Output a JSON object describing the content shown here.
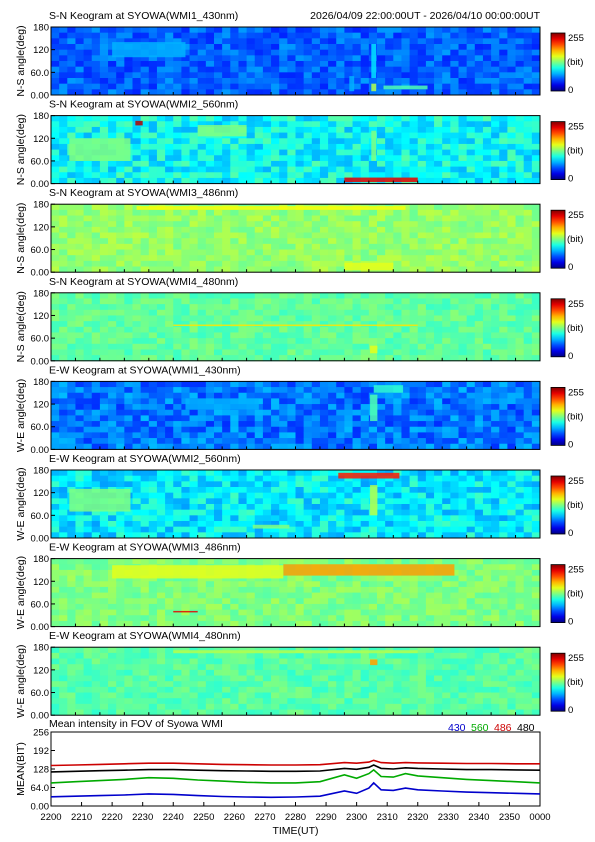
{
  "header": {
    "time_range": "2026/04/09 22:00:00UT - 2026/04/10 00:00:00UT"
  },
  "colorbar": {
    "max_label": "255",
    "unit_label": "(bit)",
    "min_label": "0"
  },
  "chart_data": [
    {
      "type": "heatmap",
      "title": "S-N Keogram at SYOWA(WMI1_430nm)",
      "ylabel": "N-S angle(deg)",
      "yticks": [
        "180",
        "120",
        "60.0",
        "0.00"
      ],
      "ylim": [
        0,
        180
      ],
      "xlim": [
        2200,
        2400
      ],
      "background": 0.22,
      "texture": 0.06,
      "features": [
        {
          "x": 2323,
          "y": 30,
          "w": 2,
          "h": 40,
          "v": 0.3
        },
        {
          "x": 2332,
          "y": 90,
          "w": 2,
          "h": 90,
          "v": 0.35
        },
        {
          "x": 2332,
          "y": 20,
          "w": 2,
          "h": 20,
          "v": 0.55
        },
        {
          "x": 2345,
          "y": 20,
          "w": 18,
          "h": 10,
          "v": 0.45
        },
        {
          "x": 2240,
          "y": 120,
          "w": 30,
          "h": 40,
          "v": 0.3
        }
      ]
    },
    {
      "type": "heatmap",
      "title": "S-N Keogram at SYOWA(WMI2_560nm)",
      "ylabel": "N-S angle(deg)",
      "yticks": [
        "180",
        "120",
        "60.0",
        "0.00"
      ],
      "ylim": [
        0,
        180
      ],
      "xlim": [
        2200,
        2400
      ],
      "background": 0.38,
      "texture": 0.08,
      "features": [
        {
          "x": 2236,
          "y": 160,
          "w": 3,
          "h": 12,
          "v": 0.95
        },
        {
          "x": 2335,
          "y": 10,
          "w": 30,
          "h": 12,
          "v": 0.9
        },
        {
          "x": 2332,
          "y": 100,
          "w": 2,
          "h": 80,
          "v": 0.5
        },
        {
          "x": 2220,
          "y": 90,
          "w": 25,
          "h": 60,
          "v": 0.5
        },
        {
          "x": 2270,
          "y": 140,
          "w": 20,
          "h": 30,
          "v": 0.5
        }
      ]
    },
    {
      "type": "heatmap",
      "title": "S-N Keogram at SYOWA(WMI3_486nm)",
      "ylabel": "N-S angle(deg)",
      "yticks": [
        "180",
        "120",
        "60.0",
        "0.00"
      ],
      "ylim": [
        0,
        180
      ],
      "xlim": [
        2200,
        2400
      ],
      "background": 0.52,
      "texture": 0.04,
      "features": [
        {
          "x": 2290,
          "y": 170,
          "w": 110,
          "h": 10,
          "v": 0.62
        },
        {
          "x": 2330,
          "y": 15,
          "w": 20,
          "h": 20,
          "v": 0.6
        }
      ]
    },
    {
      "type": "heatmap",
      "title": "S-N Keogram at SYOWA(WMI4_480nm)",
      "ylabel": "N-S angle(deg)",
      "yticks": [
        "180",
        "120",
        "60.0",
        "0.00"
      ],
      "ylim": [
        0,
        180
      ],
      "xlim": [
        2200,
        2400
      ],
      "background": 0.47,
      "texture": 0.04,
      "features": [
        {
          "x": 2332,
          "y": 30,
          "w": 3,
          "h": 20,
          "v": 0.6
        },
        {
          "x": 2300,
          "y": 95,
          "w": 100,
          "h": 2,
          "v": 0.65
        }
      ]
    },
    {
      "type": "heatmap",
      "title": "E-W Keogram at SYOWA(WMI1_430nm)",
      "ylabel": "W-E angle(deg)",
      "yticks": [
        "180",
        "120",
        "60.0",
        "0.00"
      ],
      "ylim": [
        0,
        180
      ],
      "xlim": [
        2200,
        2400
      ],
      "background": 0.24,
      "texture": 0.07,
      "features": [
        {
          "x": 2332,
          "y": 110,
          "w": 3,
          "h": 70,
          "v": 0.45
        },
        {
          "x": 2338,
          "y": 160,
          "w": 12,
          "h": 20,
          "v": 0.42
        },
        {
          "x": 2270,
          "y": 120,
          "w": 30,
          "h": 30,
          "v": 0.3
        }
      ]
    },
    {
      "type": "heatmap",
      "title": "E-W Keogram at SYOWA(WMI2_560nm)",
      "ylabel": "W-E angle(deg)",
      "yticks": [
        "180",
        "120",
        "60.0",
        "0.00"
      ],
      "ylim": [
        0,
        180
      ],
      "xlim": [
        2200,
        2400
      ],
      "background": 0.36,
      "texture": 0.08,
      "features": [
        {
          "x": 2330,
          "y": 165,
          "w": 25,
          "h": 15,
          "v": 0.85
        },
        {
          "x": 2332,
          "y": 100,
          "w": 3,
          "h": 80,
          "v": 0.55
        },
        {
          "x": 2220,
          "y": 100,
          "w": 25,
          "h": 60,
          "v": 0.5
        },
        {
          "x": 2290,
          "y": 30,
          "w": 15,
          "h": 10,
          "v": 0.5
        }
      ]
    },
    {
      "type": "heatmap",
      "title": "E-W Keogram at SYOWA(WMI3_486nm)",
      "ylabel": "W-E angle(deg)",
      "yticks": [
        "180",
        "120",
        "60.0",
        "0.00"
      ],
      "ylim": [
        0,
        180
      ],
      "xlim": [
        2200,
        2400
      ],
      "background": 0.5,
      "texture": 0.04,
      "features": [
        {
          "x": 2330,
          "y": 150,
          "w": 70,
          "h": 30,
          "v": 0.72
        },
        {
          "x": 2260,
          "y": 145,
          "w": 70,
          "h": 35,
          "v": 0.6
        },
        {
          "x": 2255,
          "y": 40,
          "w": 10,
          "h": 3,
          "v": 0.9
        }
      ]
    },
    {
      "type": "heatmap",
      "title": "E-W Keogram at SYOWA(WMI4_480nm)",
      "ylabel": "W-E angle(deg)",
      "yticks": [
        "180",
        "120",
        "60.0",
        "0.00"
      ],
      "ylim": [
        0,
        180
      ],
      "xlim": [
        2200,
        2400
      ],
      "background": 0.46,
      "texture": 0.04,
      "features": [
        {
          "x": 2332,
          "y": 140,
          "w": 3,
          "h": 15,
          "v": 0.72
        },
        {
          "x": 2300,
          "y": 168,
          "w": 100,
          "h": 8,
          "v": 0.55
        }
      ]
    },
    {
      "type": "line",
      "title": "Mean intensity in FOV of Syowa WMI",
      "ylabel": "MEAN(BIT)",
      "xlabel": "TIME(UT)",
      "xlim": [
        2200,
        2400
      ],
      "ylim": [
        0,
        256
      ],
      "yticks": [
        "256",
        "192",
        "128",
        "64.0",
        "0.00"
      ],
      "xticks": [
        "2200",
        "2210",
        "2220",
        "2230",
        "2240",
        "2250",
        "2260",
        "2270",
        "2280",
        "2290",
        "2300",
        "2310",
        "2320",
        "2330",
        "2340",
        "2350",
        "0000"
      ],
      "x": [
        2200,
        2210,
        2220,
        2230,
        2240,
        2250,
        2260,
        2270,
        2280,
        2290,
        2300,
        2310,
        2320,
        2325,
        2330,
        2332,
        2335,
        2340,
        2345,
        2350,
        2360,
        2370,
        2380,
        2390,
        2400
      ],
      "series": [
        {
          "name": "430",
          "color": "#0000cc",
          "values": [
            32,
            34,
            36,
            38,
            42,
            40,
            36,
            33,
            31,
            30,
            31,
            34,
            52,
            44,
            62,
            80,
            56,
            54,
            62,
            56,
            52,
            48,
            46,
            44,
            42
          ]
        },
        {
          "name": "560",
          "color": "#00aa00",
          "values": [
            80,
            84,
            88,
            92,
            98,
            96,
            90,
            86,
            82,
            80,
            80,
            84,
            108,
            96,
            112,
            125,
            102,
            100,
            112,
            104,
            98,
            92,
            88,
            84,
            80
          ]
        },
        {
          "name": "486",
          "color": "#cc0000",
          "values": [
            140,
            142,
            144,
            146,
            148,
            148,
            146,
            144,
            143,
            142,
            142,
            143,
            150,
            148,
            152,
            158,
            150,
            148,
            150,
            149,
            148,
            147,
            147,
            146,
            146
          ]
        },
        {
          "name": "480",
          "color": "#000000",
          "values": [
            118,
            120,
            122,
            124,
            126,
            126,
            124,
            122,
            121,
            120,
            120,
            121,
            130,
            127,
            134,
            142,
            130,
            128,
            132,
            130,
            128,
            126,
            126,
            125,
            124
          ]
        }
      ]
    }
  ]
}
